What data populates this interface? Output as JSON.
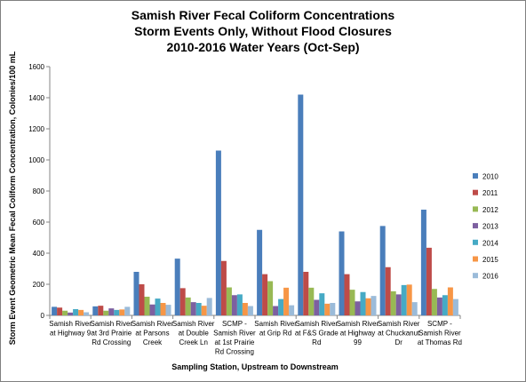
{
  "chart_data": {
    "type": "bar",
    "title_lines": [
      "Samish River Fecal Coliform Concentrations",
      "Storm Events Only, Without Flood Closures",
      "2010-2016 Water Years (Oct-Sep)"
    ],
    "xlabel": "Sampling Station, Upstream to Downstream",
    "ylabel": "Storm Event Geometric Mean Fecal Coliform Concentration, Colonies/100 mL",
    "ylim": [
      0,
      1600
    ],
    "yticks": [
      0,
      200,
      400,
      600,
      800,
      1000,
      1200,
      1400,
      1600
    ],
    "grid": false,
    "legend_position": "right",
    "categories": [
      [
        "Samish River",
        "at Highway 9"
      ],
      [
        "Samish River",
        "at 3rd Prairie",
        "Rd Crossing"
      ],
      [
        "Samish River",
        "at Parsons",
        "Creek"
      ],
      [
        "Samish River",
        "at Double",
        "Creek Ln"
      ],
      [
        "SCMP -",
        "Samish River",
        "at 1st Prairie",
        "Rd Crossing"
      ],
      [
        "Samish River",
        "at Grip Rd"
      ],
      [
        "Samish River",
        "at F&S Grade",
        "Rd"
      ],
      [
        "Samish River",
        "at Highway",
        "99"
      ],
      [
        "Samish River",
        "at Chuckanut",
        "Dr"
      ],
      [
        "SCMP -",
        "Samish River",
        "at Thomas Rd"
      ]
    ],
    "series": [
      {
        "name": "2010",
        "color": "#4a7ebb",
        "values": [
          55,
          58,
          280,
          365,
          1060,
          550,
          1420,
          540,
          575,
          680
        ]
      },
      {
        "name": "2011",
        "color": "#be4b48",
        "values": [
          50,
          62,
          200,
          175,
          350,
          265,
          280,
          265,
          310,
          435
        ]
      },
      {
        "name": "2012",
        "color": "#98b954",
        "values": [
          30,
          30,
          120,
          115,
          180,
          220,
          178,
          165,
          155,
          170
        ]
      },
      {
        "name": "2013",
        "color": "#7d60a0",
        "values": [
          18,
          45,
          70,
          85,
          130,
          60,
          100,
          90,
          135,
          115
        ]
      },
      {
        "name": "2014",
        "color": "#46aac5",
        "values": [
          40,
          35,
          108,
          80,
          135,
          105,
          142,
          150,
          195,
          130
        ]
      },
      {
        "name": "2015",
        "color": "#f79646",
        "values": [
          35,
          38,
          80,
          62,
          80,
          178,
          75,
          110,
          198,
          180
        ]
      },
      {
        "name": "2016",
        "color": "#9bbbd9",
        "values": [
          20,
          55,
          68,
          112,
          60,
          65,
          80,
          125,
          85,
          105
        ]
      }
    ]
  }
}
